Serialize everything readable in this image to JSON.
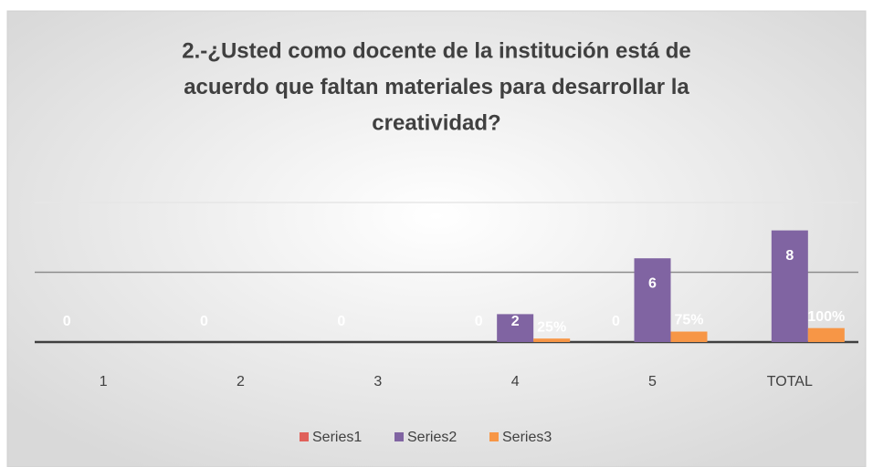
{
  "chart_data": {
    "type": "bar",
    "title": [
      "2.-¿Usted como docente de la  institución está de",
      "acuerdo que faltan  materiales  para desarrollar la",
      "creatividad?"
    ],
    "categories": [
      "1",
      "2",
      "3",
      "4",
      "5",
      "TOTAL"
    ],
    "series": [
      {
        "name": "Series1",
        "color": "#e0605a",
        "values": [
          0,
          0,
          0,
          0,
          0,
          null
        ]
      },
      {
        "name": "Series2",
        "color": "#8064a2",
        "values": [
          null,
          null,
          null,
          2,
          6,
          8
        ]
      },
      {
        "name": "Series3",
        "color": "#f79646",
        "values": [
          null,
          null,
          null,
          0.25,
          0.75,
          1
        ],
        "value_labels": [
          null,
          null,
          null,
          "25%",
          "75%",
          "100%"
        ]
      }
    ],
    "ylim": [
      0,
      10
    ],
    "yticks": [
      0,
      5,
      10
    ],
    "grid": true,
    "legend": "bottom"
  }
}
